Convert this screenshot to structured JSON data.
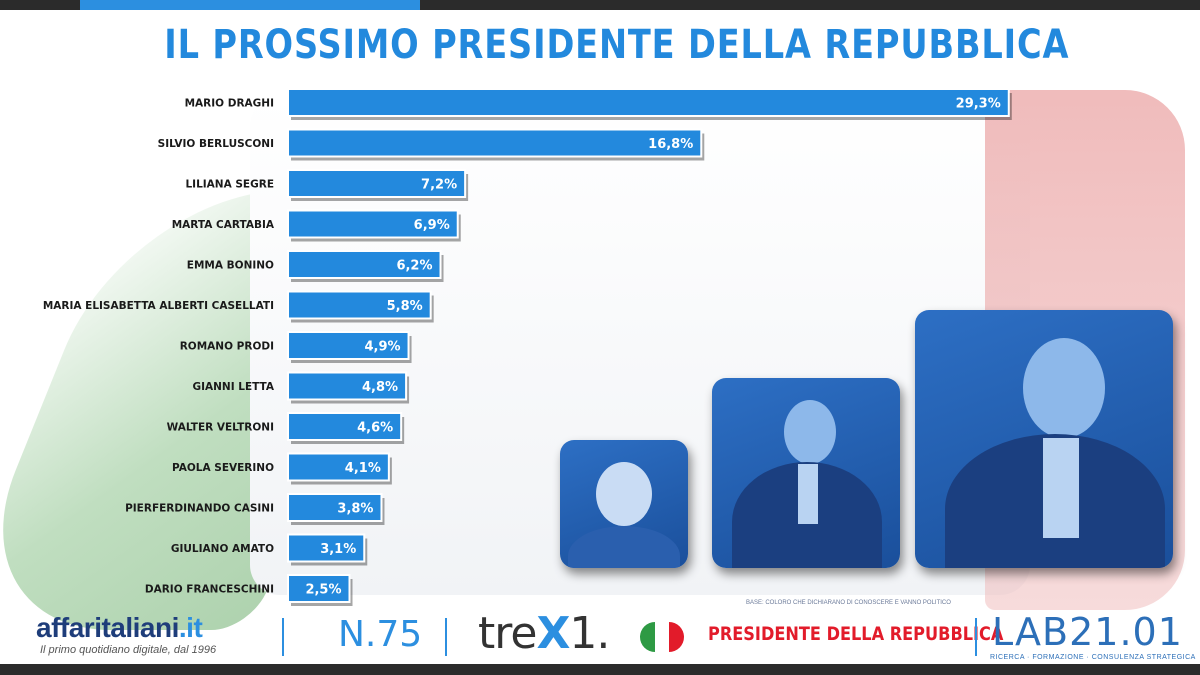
{
  "header": {
    "title": "IL PROSSIMO PRESIDENTE DELLA REPUBBLICA"
  },
  "chart_data": {
    "type": "bar",
    "orientation": "horizontal",
    "title": "IL PROSSIMO PRESIDENTE DELLA REPUBBLICA",
    "categories": [
      "MARIO DRAGHI",
      "SILVIO BERLUSCONI",
      "LILIANA SEGRE",
      "MARTA CARTABIA",
      "EMMA BONINO",
      "MARIA ELISABETTA ALBERTI CASELLATI",
      "ROMANO PRODI",
      "GIANNI LETTA",
      "WALTER VELTRONI",
      "PAOLA SEVERINO",
      "PIERFERDINANDO CASINI",
      "GIULIANO AMATO",
      "DARIO FRANCESCHINI"
    ],
    "values": [
      29.3,
      16.8,
      7.2,
      6.9,
      6.2,
      5.8,
      4.9,
      4.8,
      4.6,
      4.1,
      3.8,
      3.1,
      2.5
    ],
    "value_labels": [
      "29,3%",
      "16,8%",
      "7,2%",
      "6,9%",
      "6,2%",
      "5,8%",
      "4,9%",
      "4,8%",
      "4,6%",
      "4,1%",
      "3,8%",
      "3,1%",
      "2,5%"
    ],
    "unit": "%",
    "xlim": [
      0,
      30
    ],
    "grid": false,
    "legend": "none",
    "bar_color": "#2389dd",
    "label_color": "#1a1a1a"
  },
  "base_note": "BASE: COLORO CHE DICHIARANO DI CONOSCERE E VANNO POLITICO",
  "photos": [
    {
      "icon": "portrait-liliana-segre"
    },
    {
      "icon": "portrait-silvio-berlusconi"
    },
    {
      "icon": "portrait-mario-draghi"
    }
  ],
  "footer": {
    "brand_main": "affaritaliani",
    "brand_tld": ".it",
    "tagline": "Il primo quotidiano digitale, dal 1996",
    "issue": "N.75",
    "trex_prefix": "tre",
    "trex_x": "X",
    "trex_suffix": "1.",
    "trex_flag_colors": [
      "#2e9a44",
      "#ffffff",
      "#e21b2a"
    ],
    "survey_title": "PRESIDENTE DELLA REPUBBLICA",
    "lab": "LAB21.01",
    "lab_sub": "RICERCA · FORMAZIONE · CONSULENZA STRATEGICA"
  },
  "colors": {
    "accent": "#2c8fe0",
    "dark": "#2b2b2b",
    "red": "#e21b2a"
  }
}
